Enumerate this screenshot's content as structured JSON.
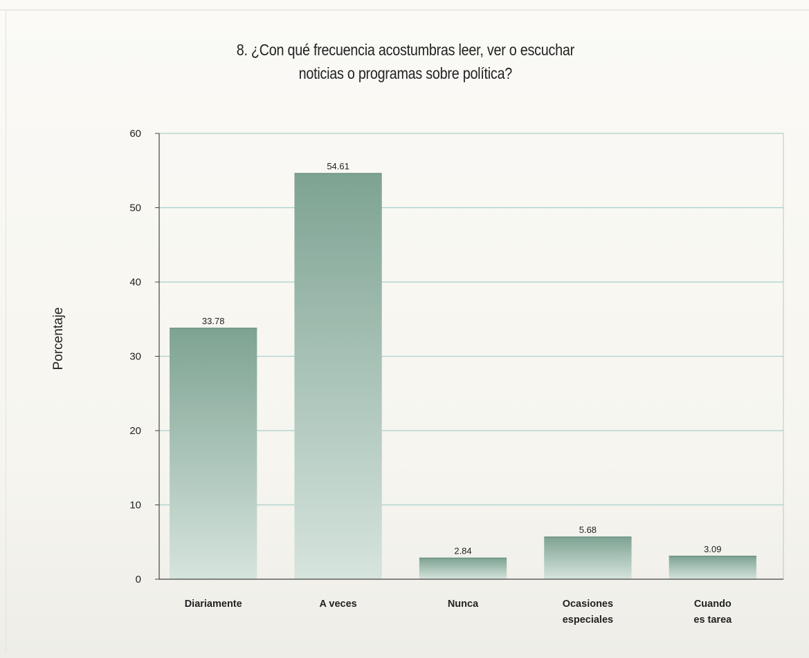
{
  "chart_data": {
    "type": "bar",
    "title": "8. ¿Con qué frecuencia acostumbras leer, ver o escuchar noticias o programas sobre política?",
    "title_lines": [
      "8. ¿Con qué frecuencia acostumbras leer, ver o escuchar",
      "noticias o programas sobre política?"
    ],
    "ylabel": "Porcentaje",
    "xlabel": "",
    "ylim": [
      0,
      60
    ],
    "yticks": [
      0,
      10,
      20,
      30,
      40,
      50,
      60
    ],
    "categories": [
      [
        "Diariamente"
      ],
      [
        "A veces"
      ],
      [
        "Nunca"
      ],
      [
        "Ocasiones",
        "especiales"
      ],
      [
        "Cuando",
        "es tarea"
      ]
    ],
    "values": [
      33.78,
      54.61,
      2.84,
      5.68,
      3.09
    ],
    "value_labels": [
      "33.78",
      "54.61",
      "2.84",
      "5.68",
      "3.09"
    ],
    "grid": true,
    "colors": {
      "bar_top": "#7ea393",
      "bar_bottom": "#d6e4dd",
      "grid": "#a9cfc9",
      "axis": "#444444"
    }
  }
}
